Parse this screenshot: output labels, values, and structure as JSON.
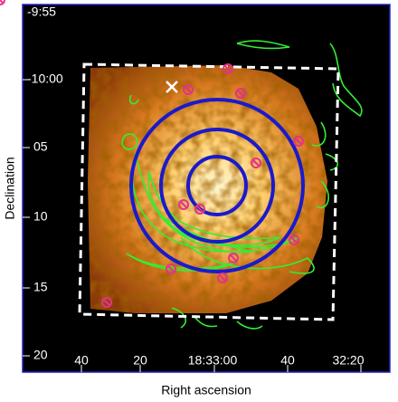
{
  "axes": {
    "x_label": "Right ascension",
    "y_label": "Declination",
    "x_ticks": [
      "40",
      "20",
      "18:33:00",
      "40",
      "32:20"
    ],
    "y_ticks": [
      "-9:55",
      "-10:00",
      "05",
      "10",
      "15",
      "20"
    ]
  }
}
